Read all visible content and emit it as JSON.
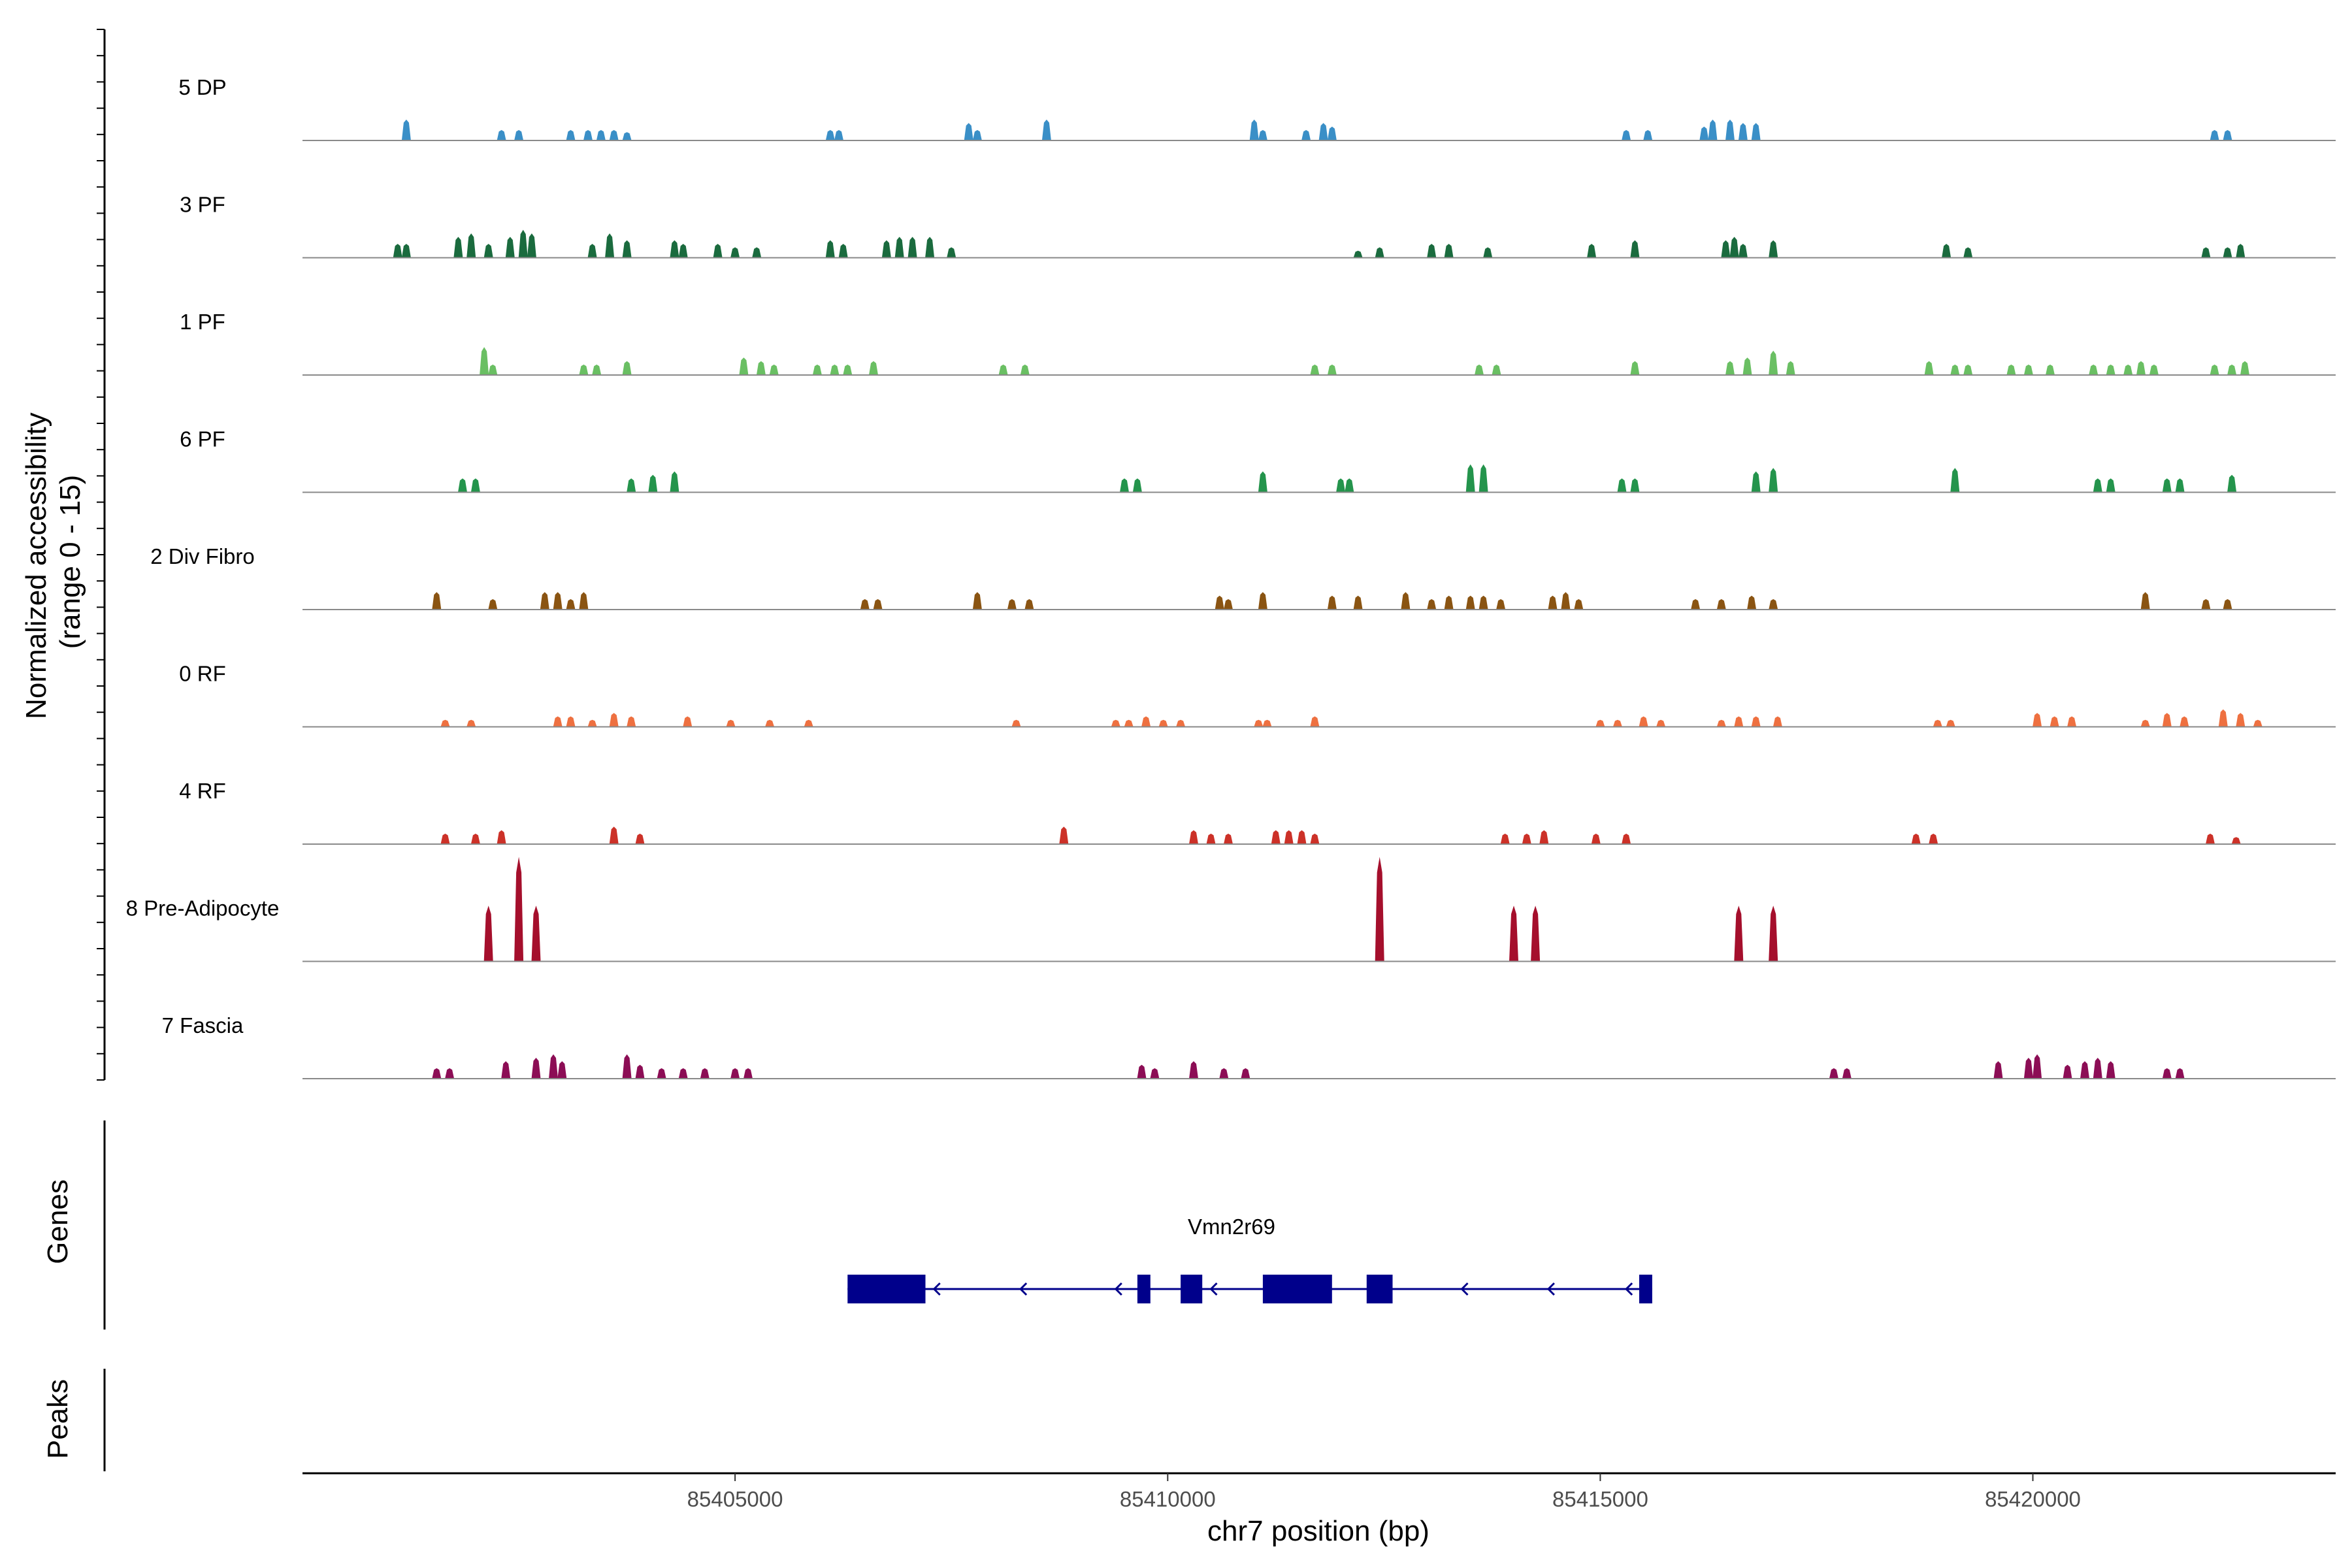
{
  "chart_data": {
    "type": "coverage-track",
    "ylabel": "Normalized accessibility\n(range 0 - 15)",
    "y_range": [
      0,
      15
    ],
    "xlabel": "chr7 position (bp)",
    "xlim": [
      85400000,
      85423500
    ],
    "x_ticks": [
      85405000,
      85410000,
      85415000,
      85420000
    ],
    "x_tick_labels": [
      "85405000",
      "85410000",
      "85415000",
      "85420000"
    ],
    "tracks": [
      {
        "name": "5 DP",
        "color": "#3a8fc7",
        "peaks": [
          [
            85401200,
            3
          ],
          [
            85402300,
            1.5
          ],
          [
            85402500,
            1.5
          ],
          [
            85403100,
            1.5
          ],
          [
            85403300,
            1.5
          ],
          [
            85403450,
            1.5
          ],
          [
            85403600,
            1.5
          ],
          [
            85403750,
            1.2
          ],
          [
            85406100,
            1.5
          ],
          [
            85406200,
            1.5
          ],
          [
            85407700,
            2.5
          ],
          [
            85407800,
            1.5
          ],
          [
            85408600,
            3
          ],
          [
            85411000,
            3
          ],
          [
            85411100,
            1.5
          ],
          [
            85411600,
            1.5
          ],
          [
            85411800,
            2.5
          ],
          [
            85411900,
            2
          ],
          [
            85415300,
            1.5
          ],
          [
            85415550,
            1.5
          ],
          [
            85416200,
            2
          ],
          [
            85416300,
            3
          ],
          [
            85416500,
            3
          ],
          [
            85416650,
            2.5
          ],
          [
            85416800,
            2.5
          ],
          [
            85422100,
            1.5
          ],
          [
            85422250,
            1.5
          ]
        ]
      },
      {
        "name": "3 PF",
        "color": "#1a6b3e",
        "peaks": [
          [
            85401100,
            2
          ],
          [
            85401200,
            2
          ],
          [
            85401800,
            3
          ],
          [
            85401950,
            3.5
          ],
          [
            85402150,
            2
          ],
          [
            85402400,
            3
          ],
          [
            85402550,
            4
          ],
          [
            85402650,
            3.5
          ],
          [
            85403350,
            2
          ],
          [
            85403550,
            3.5
          ],
          [
            85403750,
            2.5
          ],
          [
            85404300,
            2.5
          ],
          [
            85404400,
            2
          ],
          [
            85404800,
            2
          ],
          [
            85405000,
            1.5
          ],
          [
            85405250,
            1.5
          ],
          [
            85406100,
            2.5
          ],
          [
            85406250,
            2
          ],
          [
            85406750,
            2.5
          ],
          [
            85406900,
            3
          ],
          [
            85407050,
            3
          ],
          [
            85407250,
            3
          ],
          [
            85407500,
            1.5
          ],
          [
            85412200,
            1
          ],
          [
            85412450,
            1.5
          ],
          [
            85413050,
            2
          ],
          [
            85413250,
            2
          ],
          [
            85413700,
            1.5
          ],
          [
            85414900,
            2
          ],
          [
            85415400,
            2.5
          ],
          [
            85416450,
            2.5
          ],
          [
            85416550,
            3
          ],
          [
            85416650,
            2
          ],
          [
            85417000,
            2.5
          ],
          [
            85419000,
            2
          ],
          [
            85419250,
            1.5
          ],
          [
            85422000,
            1.5
          ],
          [
            85422250,
            1.5
          ],
          [
            85422400,
            2
          ]
        ]
      },
      {
        "name": "1 PF",
        "color": "#6abf63",
        "peaks": [
          [
            85402100,
            4
          ],
          [
            85402200,
            1.5
          ],
          [
            85403250,
            1.5
          ],
          [
            85403400,
            1.5
          ],
          [
            85403750,
            2
          ],
          [
            85405100,
            2.5
          ],
          [
            85405300,
            2
          ],
          [
            85405450,
            1.5
          ],
          [
            85405950,
            1.5
          ],
          [
            85406150,
            1.5
          ],
          [
            85406300,
            1.5
          ],
          [
            85406600,
            2
          ],
          [
            85408100,
            1.5
          ],
          [
            85408350,
            1.5
          ],
          [
            85411700,
            1.5
          ],
          [
            85411900,
            1.5
          ],
          [
            85413600,
            1.5
          ],
          [
            85413800,
            1.5
          ],
          [
            85415400,
            2
          ],
          [
            85416500,
            2
          ],
          [
            85416700,
            2.5
          ],
          [
            85417000,
            3.5
          ],
          [
            85417200,
            2
          ],
          [
            85418800,
            2
          ],
          [
            85419100,
            1.5
          ],
          [
            85419250,
            1.5
          ],
          [
            85419750,
            1.5
          ],
          [
            85419950,
            1.5
          ],
          [
            85420200,
            1.5
          ],
          [
            85420700,
            1.5
          ],
          [
            85420900,
            1.5
          ],
          [
            85421100,
            1.5
          ],
          [
            85421250,
            2
          ],
          [
            85421400,
            1.5
          ],
          [
            85422100,
            1.5
          ],
          [
            85422300,
            1.5
          ],
          [
            85422450,
            2
          ]
        ]
      },
      {
        "name": "6 PF",
        "color": "#24944c",
        "peaks": [
          [
            85401850,
            2
          ],
          [
            85402000,
            2
          ],
          [
            85403800,
            2
          ],
          [
            85404050,
            2.5
          ],
          [
            85404300,
            3
          ],
          [
            85409500,
            2
          ],
          [
            85409650,
            2
          ],
          [
            85411100,
            3
          ],
          [
            85412000,
            2
          ],
          [
            85412100,
            2
          ],
          [
            85413500,
            4
          ],
          [
            85413650,
            4
          ],
          [
            85415250,
            2
          ],
          [
            85415400,
            2
          ],
          [
            85416800,
            3
          ],
          [
            85417000,
            3.5
          ],
          [
            85419100,
            3.5
          ],
          [
            85420750,
            2
          ],
          [
            85420900,
            2
          ],
          [
            85421550,
            2
          ],
          [
            85421700,
            2
          ],
          [
            85422300,
            2.5
          ]
        ]
      },
      {
        "name": "2 Div Fibro",
        "color": "#8a5412",
        "peaks": [
          [
            85401550,
            2.5
          ],
          [
            85402200,
            1.5
          ],
          [
            85402800,
            2.5
          ],
          [
            85402950,
            2.5
          ],
          [
            85403100,
            1.5
          ],
          [
            85403250,
            2.5
          ],
          [
            85406500,
            1.5
          ],
          [
            85406650,
            1.5
          ],
          [
            85407800,
            2.5
          ],
          [
            85408200,
            1.5
          ],
          [
            85408400,
            1.5
          ],
          [
            85410600,
            2
          ],
          [
            85410700,
            1.5
          ],
          [
            85411100,
            2.5
          ],
          [
            85411900,
            2
          ],
          [
            85412200,
            2
          ],
          [
            85412750,
            2.5
          ],
          [
            85413050,
            1.5
          ],
          [
            85413250,
            2
          ],
          [
            85413500,
            2
          ],
          [
            85413650,
            2
          ],
          [
            85413850,
            1.5
          ],
          [
            85414450,
            2
          ],
          [
            85414600,
            2.5
          ],
          [
            85414750,
            1.5
          ],
          [
            85416100,
            1.5
          ],
          [
            85416400,
            1.5
          ],
          [
            85416750,
            2
          ],
          [
            85417000,
            1.5
          ],
          [
            85421300,
            2.5
          ],
          [
            85422000,
            1.5
          ],
          [
            85422250,
            1.5
          ]
        ]
      },
      {
        "name": "0 RF",
        "color": "#ee7040",
        "peaks": [
          [
            85401650,
            1
          ],
          [
            85401950,
            1
          ],
          [
            85402950,
            1.5
          ],
          [
            85403100,
            1.5
          ],
          [
            85403350,
            1
          ],
          [
            85403600,
            2
          ],
          [
            85403800,
            1.5
          ],
          [
            85404450,
            1.5
          ],
          [
            85404950,
            1
          ],
          [
            85405400,
            1
          ],
          [
            85405850,
            1
          ],
          [
            85408250,
            1
          ],
          [
            85409400,
            1
          ],
          [
            85409550,
            1
          ],
          [
            85409750,
            1.5
          ],
          [
            85409950,
            1
          ],
          [
            85410150,
            1
          ],
          [
            85411050,
            1
          ],
          [
            85411150,
            1
          ],
          [
            85411700,
            1.5
          ],
          [
            85415000,
            1
          ],
          [
            85415200,
            1
          ],
          [
            85415500,
            1.5
          ],
          [
            85415700,
            1
          ],
          [
            85416400,
            1
          ],
          [
            85416600,
            1.5
          ],
          [
            85416800,
            1.5
          ],
          [
            85417050,
            1.5
          ],
          [
            85418900,
            1
          ],
          [
            85419050,
            1
          ],
          [
            85420050,
            2
          ],
          [
            85420250,
            1.5
          ],
          [
            85420450,
            1.5
          ],
          [
            85421300,
            1
          ],
          [
            85421550,
            2
          ],
          [
            85421750,
            1.5
          ],
          [
            85422200,
            2.5
          ],
          [
            85422400,
            2
          ],
          [
            85422600,
            1
          ]
        ]
      },
      {
        "name": "4 RF",
        "color": "#cc3128",
        "peaks": [
          [
            85401650,
            1.5
          ],
          [
            85402000,
            1.5
          ],
          [
            85402300,
            2
          ],
          [
            85403600,
            2.5
          ],
          [
            85403900,
            1.5
          ],
          [
            85408800,
            2.5
          ],
          [
            85410300,
            2
          ],
          [
            85410500,
            1.5
          ],
          [
            85410700,
            1.5
          ],
          [
            85411250,
            2
          ],
          [
            85411400,
            2
          ],
          [
            85411550,
            2
          ],
          [
            85411700,
            1.5
          ],
          [
            85413900,
            1.5
          ],
          [
            85414150,
            1.5
          ],
          [
            85414350,
            2
          ],
          [
            85414950,
            1.5
          ],
          [
            85415300,
            1.5
          ],
          [
            85418650,
            1.5
          ],
          [
            85418850,
            1.5
          ],
          [
            85422050,
            1.5
          ],
          [
            85422350,
            1
          ]
        ]
      },
      {
        "name": "8 Pre-Adipocyte",
        "color": "#a50f2c",
        "peaks": [
          [
            85402150,
            8
          ],
          [
            85402500,
            15
          ],
          [
            85402700,
            8
          ],
          [
            85412450,
            15
          ],
          [
            85414000,
            8
          ],
          [
            85414250,
            8
          ],
          [
            85416600,
            8
          ],
          [
            85417000,
            8
          ]
        ]
      },
      {
        "name": "7 Fascia",
        "color": "#8c0d55",
        "peaks": [
          [
            85401550,
            1.5
          ],
          [
            85401700,
            1.5
          ],
          [
            85402350,
            2.5
          ],
          [
            85402700,
            3
          ],
          [
            85402900,
            3.5
          ],
          [
            85403000,
            2.5
          ],
          [
            85403750,
            3.5
          ],
          [
            85403900,
            2
          ],
          [
            85404150,
            1.5
          ],
          [
            85404400,
            1.5
          ],
          [
            85404650,
            1.5
          ],
          [
            85405000,
            1.5
          ],
          [
            85405150,
            1.5
          ],
          [
            85409700,
            2
          ],
          [
            85409850,
            1.5
          ],
          [
            85410300,
            2.5
          ],
          [
            85410650,
            1.5
          ],
          [
            85410900,
            1.5
          ],
          [
            85417700,
            1.5
          ],
          [
            85417850,
            1.5
          ],
          [
            85419600,
            2.5
          ],
          [
            85419950,
            3
          ],
          [
            85420050,
            3.5
          ],
          [
            85420400,
            2
          ],
          [
            85420600,
            2.5
          ],
          [
            85420750,
            3
          ],
          [
            85420900,
            2.5
          ],
          [
            85421550,
            1.5
          ],
          [
            85421700,
            1.5
          ]
        ]
      }
    ],
    "gene_track": {
      "label": "Genes",
      "gene_name": "Vmn2r69",
      "strand": "-",
      "color": "#00008b",
      "start": 85406300,
      "end": 85415600,
      "exons": [
        [
          85406300,
          85407200
        ],
        [
          85409650,
          85409800
        ],
        [
          85410150,
          85410400
        ],
        [
          85411100,
          85411900
        ],
        [
          85412300,
          85412600
        ],
        [
          85415450,
          85415600
        ]
      ],
      "strand_arrows": [
        85407300,
        85408300,
        85409400,
        85410500,
        85413400,
        85414400,
        85415300
      ]
    },
    "peaks_track": {
      "label": "Peaks",
      "peaks": []
    }
  }
}
